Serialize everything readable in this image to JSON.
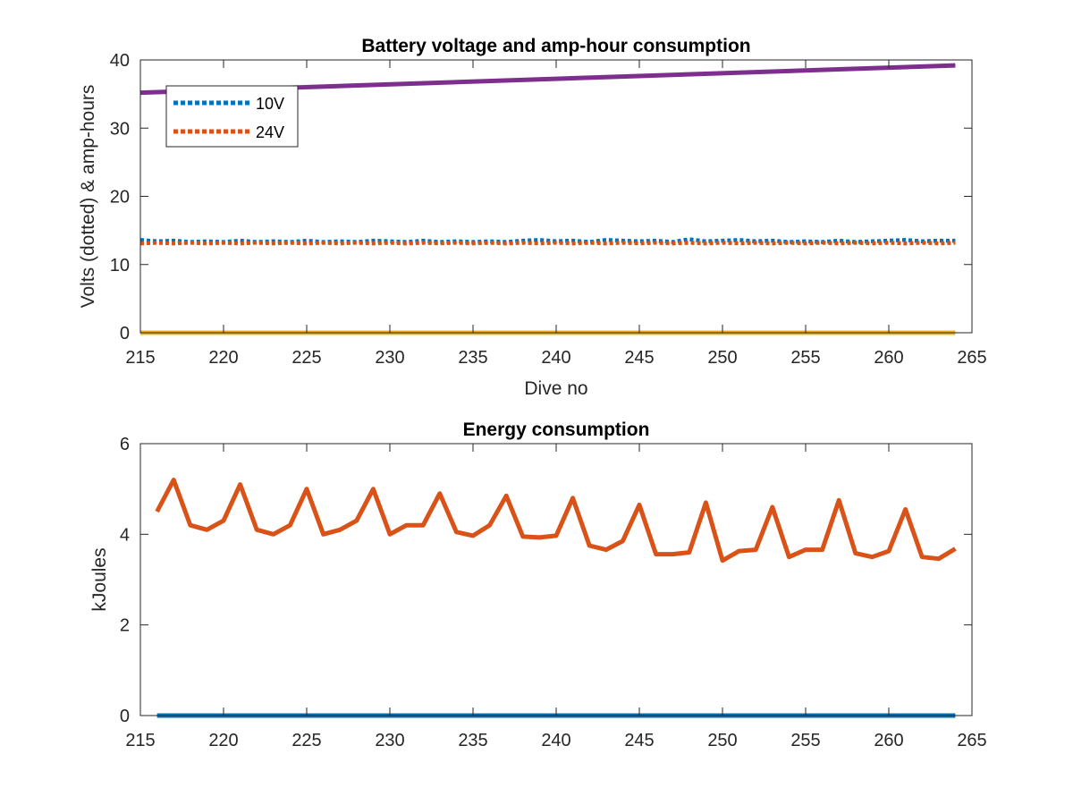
{
  "chart_data": [
    {
      "type": "line",
      "title": "Battery voltage and amp-hour consumption",
      "xlabel": "Dive no",
      "ylabel": "Volts (dotted) & amp-hours",
      "xlim": [
        215,
        265
      ],
      "ylim": [
        0,
        40
      ],
      "xticks": [
        "215",
        "220",
        "225",
        "230",
        "235",
        "240",
        "245",
        "250",
        "255",
        "260",
        "265"
      ],
      "yticks": [
        "0",
        "10",
        "20",
        "30",
        "40"
      ],
      "grid": false,
      "legend": "top-left",
      "series": [
        {
          "name": "10V",
          "style": "dotted",
          "color": "#0072BD",
          "x": [
            215,
            216,
            217,
            218,
            219,
            220,
            221,
            222,
            223,
            224,
            225,
            226,
            227,
            228,
            229,
            230,
            231,
            232,
            233,
            234,
            235,
            236,
            237,
            238,
            239,
            240,
            241,
            242,
            243,
            244,
            245,
            246,
            247,
            248,
            249,
            250,
            251,
            252,
            253,
            254,
            255,
            256,
            257,
            258,
            259,
            260,
            261,
            262,
            263,
            264
          ],
          "y": [
            13.6,
            13.4,
            13.5,
            13.3,
            13.4,
            13.3,
            13.5,
            13.3,
            13.4,
            13.3,
            13.5,
            13.3,
            13.4,
            13.3,
            13.5,
            13.4,
            13.3,
            13.5,
            13.3,
            13.4,
            13.3,
            13.4,
            13.3,
            13.5,
            13.6,
            13.4,
            13.5,
            13.3,
            13.6,
            13.5,
            13.4,
            13.5,
            13.3,
            13.7,
            13.4,
            13.5,
            13.6,
            13.4,
            13.5,
            13.3,
            13.4,
            13.3,
            13.5,
            13.3,
            13.4,
            13.5,
            13.6,
            13.4,
            13.5,
            13.5
          ]
        },
        {
          "name": "24V",
          "style": "dotted",
          "color": "#D95319",
          "x": [
            215,
            216,
            217,
            218,
            219,
            220,
            221,
            222,
            223,
            224,
            225,
            226,
            227,
            228,
            229,
            230,
            231,
            232,
            233,
            234,
            235,
            236,
            237,
            238,
            239,
            240,
            241,
            242,
            243,
            244,
            245,
            246,
            247,
            248,
            249,
            250,
            251,
            252,
            253,
            254,
            255,
            256,
            257,
            258,
            259,
            260,
            261,
            262,
            263,
            264
          ],
          "y": [
            13.1,
            13.2,
            13.1,
            13.2,
            13.1,
            13.2,
            13.1,
            13.2,
            13.1,
            13.2,
            13.1,
            13.2,
            13.1,
            13.2,
            13.1,
            13.2,
            13.1,
            13.2,
            13.1,
            13.2,
            13.1,
            13.2,
            13.1,
            13.2,
            13.1,
            13.2,
            13.1,
            13.2,
            13.1,
            13.2,
            13.1,
            13.2,
            13.1,
            13.2,
            13.1,
            13.2,
            13.1,
            13.2,
            13.1,
            13.2,
            13.1,
            13.2,
            13.1,
            13.2,
            13.1,
            13.2,
            13.1,
            13.2,
            13.1,
            13.2
          ]
        },
        {
          "style": "solid",
          "color": "#7E2F8E",
          "x": [
            215,
            264
          ],
          "y": [
            35.2,
            39.2
          ]
        },
        {
          "style": "solid",
          "color": "#EDB120",
          "x": [
            215,
            264
          ],
          "y": [
            0,
            0
          ]
        }
      ]
    },
    {
      "type": "line",
      "title": "Energy consumption",
      "xlabel": "",
      "ylabel": "kJoules",
      "xlim": [
        215,
        265
      ],
      "ylim": [
        0,
        6
      ],
      "xticks": [
        "215",
        "220",
        "225",
        "230",
        "235",
        "240",
        "245",
        "250",
        "255",
        "260",
        "265"
      ],
      "yticks": [
        "0",
        "2",
        "4",
        "6"
      ],
      "grid": false,
      "series": [
        {
          "style": "solid",
          "color": "#0072BD",
          "x": [
            216,
            264
          ],
          "y": [
            0,
            0
          ]
        },
        {
          "style": "solid",
          "color": "#D95319",
          "x": [
            216,
            217,
            218,
            219,
            220,
            221,
            222,
            223,
            224,
            225,
            226,
            227,
            228,
            229,
            230,
            231,
            232,
            233,
            234,
            235,
            236,
            237,
            238,
            239,
            240,
            241,
            242,
            243,
            244,
            245,
            246,
            247,
            248,
            249,
            250,
            251,
            252,
            253,
            254,
            255,
            256,
            257,
            258,
            259,
            260,
            261,
            262,
            263,
            264
          ],
          "y": [
            4.5,
            5.2,
            4.2,
            4.1,
            4.3,
            5.1,
            4.1,
            4.0,
            4.2,
            5.0,
            4.0,
            4.1,
            4.3,
            5.0,
            4.0,
            4.2,
            4.2,
            4.9,
            4.05,
            3.97,
            4.2,
            4.85,
            3.95,
            3.93,
            3.97,
            4.8,
            3.75,
            3.66,
            3.85,
            4.65,
            3.56,
            3.56,
            3.6,
            4.7,
            3.42,
            3.63,
            3.66,
            4.6,
            3.5,
            3.66,
            3.66,
            4.75,
            3.58,
            3.5,
            3.63,
            4.55,
            3.5,
            3.46,
            3.68
          ]
        }
      ]
    }
  ]
}
